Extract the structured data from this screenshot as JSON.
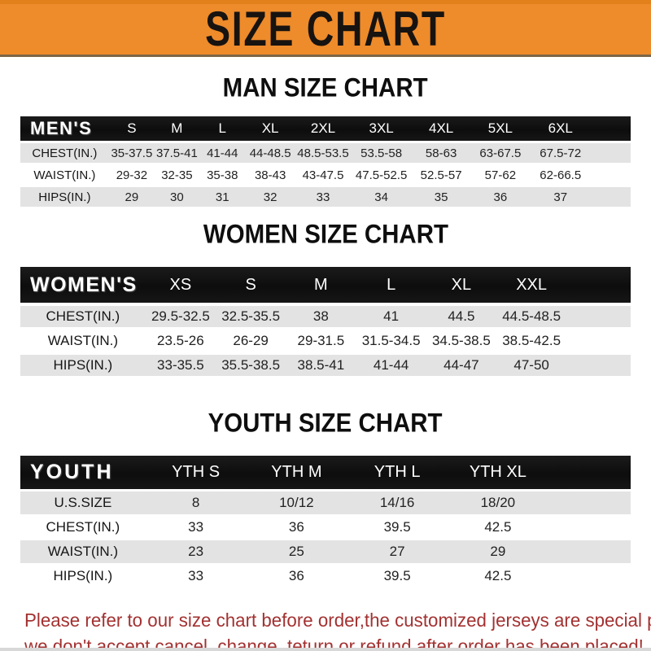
{
  "banner": {
    "title": "SIZE CHART"
  },
  "colors": {
    "banner_bg": "#EE8B2B",
    "banner_text": "#171310",
    "table_header_bg": "#111111",
    "table_header_text": "#FFFFFF",
    "row_alt_bg": "#E3E3E3",
    "row_bg": "#FFFFFF",
    "disclaimer_text": "#A33131"
  },
  "sections": [
    {
      "heading": "MAN SIZE CHART",
      "table": {
        "name": "mens",
        "label": "MEN'S",
        "columns": [
          "S",
          "M",
          "L",
          "XL",
          "2XL",
          "3XL",
          "4XL",
          "5XL",
          "6XL"
        ],
        "rows": [
          {
            "label": "CHEST(IN.)",
            "values": [
              "35-37.5",
              "37.5-41",
              "41-44",
              "44-48.5",
              "48.5-53.5",
              "53.5-58",
              "58-63",
              "63-67.5",
              "67.5-72"
            ]
          },
          {
            "label": "WAIST(IN.)",
            "values": [
              "29-32",
              "32-35",
              "35-38",
              "38-43",
              "43-47.5",
              "47.5-52.5",
              "52.5-57",
              "57-62",
              "62-66.5"
            ]
          },
          {
            "label": "HIPS(IN.)",
            "values": [
              "29",
              "30",
              "31",
              "32",
              "33",
              "34",
              "35",
              "36",
              "37"
            ]
          }
        ]
      }
    },
    {
      "heading": "WOMEN SIZE CHART",
      "table": {
        "name": "womens",
        "label": "WOMEN'S",
        "columns": [
          "XS",
          "S",
          "M",
          "L",
          "XL",
          "XXL"
        ],
        "rows": [
          {
            "label": "CHEST(IN.)",
            "values": [
              "29.5-32.5",
              "32.5-35.5",
              "38",
              "41",
              "44.5",
              "44.5-48.5"
            ]
          },
          {
            "label": "WAIST(IN.)",
            "values": [
              "23.5-26",
              "26-29",
              "29-31.5",
              "31.5-34.5",
              "34.5-38.5",
              "38.5-42.5"
            ]
          },
          {
            "label": "HIPS(IN.)",
            "values": [
              "33-35.5",
              "35.5-38.5",
              "38.5-41",
              "41-44",
              "44-47",
              "47-50"
            ]
          }
        ]
      }
    },
    {
      "heading": "YOUTH SIZE CHART",
      "table": {
        "name": "youth",
        "label": "YOUTH",
        "columns": [
          "YTH S",
          "YTH M",
          "YTH L",
          "YTH XL"
        ],
        "rows": [
          {
            "label": "U.S.SIZE",
            "values": [
              "8",
              "10/12",
              "14/16",
              "18/20"
            ]
          },
          {
            "label": "CHEST(IN.)",
            "values": [
              "33",
              "36",
              "39.5",
              "42.5"
            ]
          },
          {
            "label": "WAIST(IN.)",
            "values": [
              "23",
              "25",
              "27",
              "29"
            ]
          },
          {
            "label": "HIPS(IN.)",
            "values": [
              "33",
              "36",
              "39.5",
              "42.5"
            ]
          }
        ]
      }
    }
  ],
  "footer": {
    "lines": [
      "Please refer to our size chart before order,the customized jerseys are special products,",
      "we don't accept cancel, change, teturn or refund after order has been placed!"
    ]
  }
}
